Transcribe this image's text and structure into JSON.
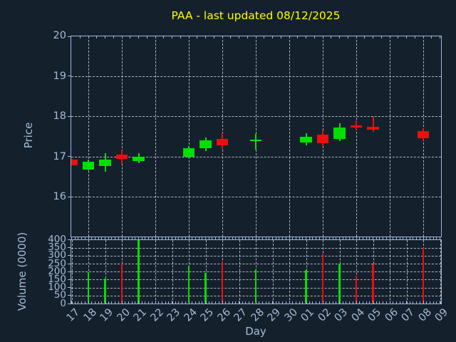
{
  "chart_data": {
    "type": "candlestick",
    "title": "PAA - last updated 08/12/2025",
    "xlabel": "Day",
    "price_axis": {
      "label": "Price",
      "ticks": [
        20,
        19,
        18,
        17,
        16
      ],
      "range": [
        15.0,
        20.0
      ],
      "grid": "dashed horizontal at each integer price, dashed vertical every 2nd day"
    },
    "volume_axis": {
      "label": "Volume (0000)",
      "ticks": [
        400,
        350,
        300,
        250,
        200,
        150,
        100,
        50,
        0
      ],
      "range": [
        0,
        400
      ],
      "grid": "dashed horizontal every 50, dashed vertical every day"
    },
    "legend": "none",
    "days": [
      {
        "label": "17",
        "open": 16.93,
        "high": 16.94,
        "low": 16.78,
        "close": 16.79,
        "volume": null,
        "direction": "down"
      },
      {
        "label": "18",
        "open": 16.68,
        "high": 16.93,
        "low": 16.67,
        "close": 16.88,
        "volume": 195,
        "direction": "up"
      },
      {
        "label": "19",
        "open": 16.76,
        "high": 17.09,
        "low": 16.63,
        "close": 16.93,
        "volume": 155,
        "direction": "up"
      },
      {
        "label": "20",
        "open": 17.06,
        "high": 17.15,
        "low": 16.82,
        "close": 16.94,
        "volume": 250,
        "direction": "down"
      },
      {
        "label": "21",
        "open": 16.9,
        "high": 17.09,
        "low": 16.84,
        "close": 17.0,
        "volume": 400,
        "direction": "up"
      },
      {
        "label": "22",
        "open": null,
        "high": null,
        "low": null,
        "close": null,
        "volume": null,
        "direction": null
      },
      {
        "label": "23",
        "open": null,
        "high": null,
        "low": null,
        "close": null,
        "volume": null,
        "direction": null
      },
      {
        "label": "24",
        "open": 17.0,
        "high": 17.27,
        "low": 16.97,
        "close": 17.21,
        "volume": 235,
        "direction": "up"
      },
      {
        "label": "25",
        "open": 17.21,
        "high": 17.47,
        "low": 17.14,
        "close": 17.4,
        "volume": 190,
        "direction": "up"
      },
      {
        "label": "26",
        "open": 17.44,
        "high": 17.59,
        "low": 17.19,
        "close": 17.28,
        "volume": 265,
        "direction": "down"
      },
      {
        "label": "27",
        "open": null,
        "high": null,
        "low": null,
        "close": null,
        "volume": null,
        "direction": null
      },
      {
        "label": "28",
        "open": 17.38,
        "high": 17.56,
        "low": 17.18,
        "close": 17.43,
        "volume": 215,
        "direction": "up"
      },
      {
        "label": "29",
        "open": null,
        "high": null,
        "low": null,
        "close": null,
        "volume": null,
        "direction": null
      },
      {
        "label": "30",
        "open": null,
        "high": null,
        "low": null,
        "close": null,
        "volume": null,
        "direction": null
      },
      {
        "label": "01",
        "open": 17.35,
        "high": 17.58,
        "low": 17.28,
        "close": 17.5,
        "volume": 210,
        "direction": "up"
      },
      {
        "label": "02",
        "open": 17.54,
        "high": 17.65,
        "low": 17.27,
        "close": 17.34,
        "volume": 315,
        "direction": "down"
      },
      {
        "label": "03",
        "open": 17.45,
        "high": 17.83,
        "low": 17.39,
        "close": 17.72,
        "volume": 250,
        "direction": "up"
      },
      {
        "label": "04",
        "open": 17.78,
        "high": 17.91,
        "low": 17.65,
        "close": 17.72,
        "volume": 175,
        "direction": "down"
      },
      {
        "label": "05",
        "open": 17.74,
        "high": 17.99,
        "low": 17.62,
        "close": 17.68,
        "volume": 245,
        "direction": "down"
      },
      {
        "label": "06",
        "open": null,
        "high": null,
        "low": null,
        "close": null,
        "volume": null,
        "direction": null
      },
      {
        "label": "07",
        "open": null,
        "high": null,
        "low": null,
        "close": null,
        "volume": null,
        "direction": null
      },
      {
        "label": "08",
        "open": 17.63,
        "high": 17.7,
        "low": 17.4,
        "close": 17.45,
        "volume": 350,
        "direction": "down"
      },
      {
        "label": "09",
        "open": null,
        "high": null,
        "low": null,
        "close": null,
        "volume": null,
        "direction": null
      }
    ],
    "colors": {
      "up": "#00e000",
      "down": "#ee0e0e",
      "background": "#15202d",
      "axis": "#9db9d8",
      "tick_text": "#a3bcd6",
      "title": "#ffff00",
      "grid": "#c9d0d9"
    }
  }
}
